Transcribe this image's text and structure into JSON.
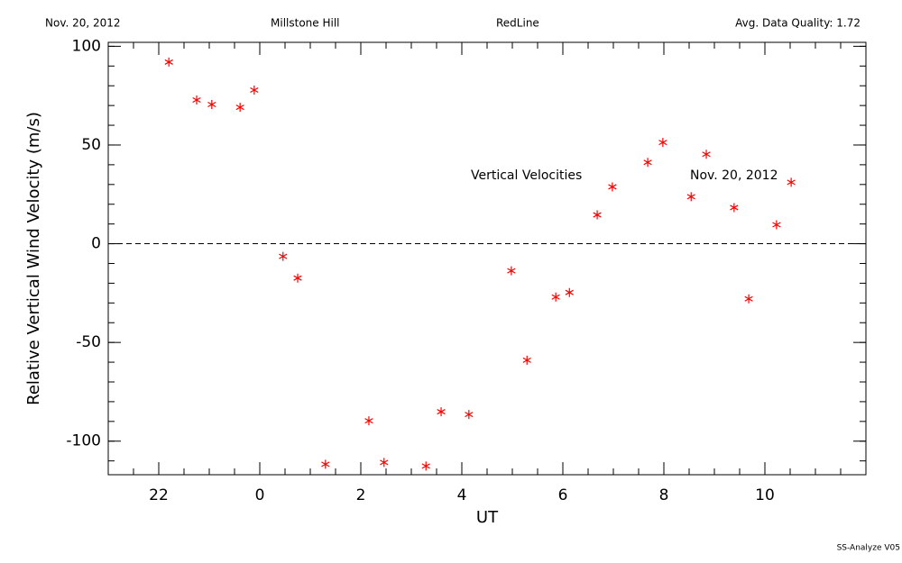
{
  "chart_data": {
    "type": "scatter",
    "header": [
      "Nov. 20, 2012",
      "Millstone Hill",
      "RedLine",
      "Avg. Data Quality: 1.72"
    ],
    "xlabel": "UT",
    "ylabel": "Relative Vertical Wind Velocity (m/s)",
    "annotations": [
      "Vertical Velocities",
      "Nov. 20, 2012"
    ],
    "footer": "SS-Analyze V05",
    "xlim": [
      -3,
      12
    ],
    "ylim": [
      -117,
      102
    ],
    "xticks": [
      {
        "value": -2,
        "label": "22"
      },
      0,
      2,
      4,
      6,
      8,
      10
    ],
    "yticks": [
      -100,
      -50,
      0,
      50,
      100
    ],
    "hline": 0,
    "series": [
      {
        "color": "#ff0000",
        "x": [
          -1.8,
          -1.25,
          -0.95,
          -0.39,
          -0.11,
          0.46,
          0.75,
          1.3,
          2.16,
          2.46,
          3.29,
          3.59,
          4.14,
          4.98,
          5.29,
          5.86,
          6.13,
          6.68,
          6.98,
          7.68,
          7.98,
          8.54,
          8.84,
          9.39,
          9.68,
          10.23,
          10.52
        ],
        "values": [
          92,
          72.8,
          70.5,
          69.1,
          77.8,
          -6.4,
          -17.4,
          -111.7,
          -89.7,
          -110.8,
          -112.6,
          -85.1,
          -86.5,
          -13.7,
          -59.0,
          -27.0,
          -24.7,
          14.6,
          28.8,
          41.2,
          51.3,
          23.8,
          45.3,
          18.3,
          -27.9,
          9.6,
          31.1
        ]
      }
    ]
  }
}
